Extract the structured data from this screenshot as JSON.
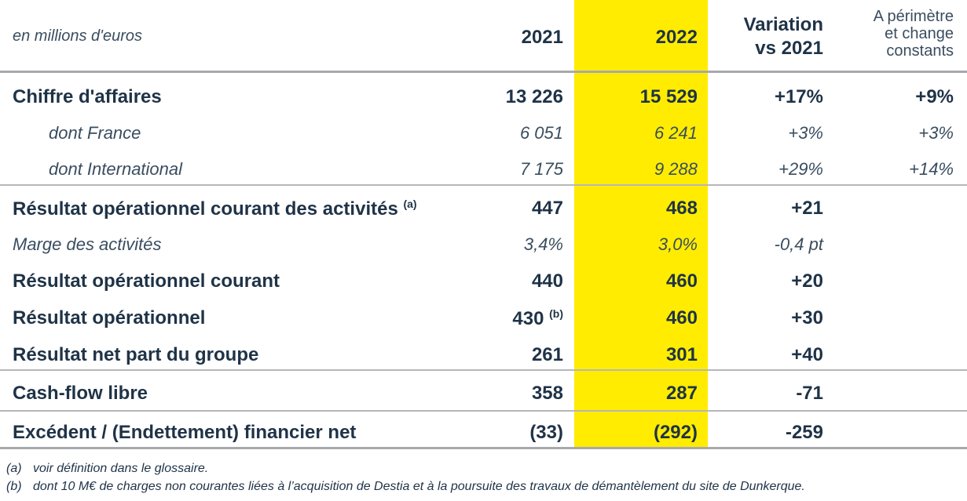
{
  "header": {
    "units": "en millions d'euros",
    "year_2021": "2021",
    "year_2022": "2022",
    "variation_line1": "Variation",
    "variation_line2": "vs 2021",
    "perimeter_line1": "A périmètre",
    "perimeter_line2": "et change",
    "perimeter_line3": "constants"
  },
  "colors": {
    "highlight": "#ffec00",
    "text": "#1f3347",
    "rule": "#a7a9ac"
  },
  "rows": [
    {
      "label": "Chiffre d'affaires",
      "sup": "",
      "v2021": "13 226",
      "v2021_sup": "",
      "v2022": "15 529",
      "variation": "+17%",
      "constant": "+9%"
    },
    {
      "label": "dont France",
      "sup": "",
      "v2021": "6 051",
      "v2021_sup": "",
      "v2022": "6 241",
      "variation": "+3%",
      "constant": "+3%"
    },
    {
      "label": "dont International",
      "sup": "",
      "v2021": "7 175",
      "v2021_sup": "",
      "v2022": "9 288",
      "variation": "+29%",
      "constant": "+14%"
    },
    {
      "label": "Résultat opérationnel courant des activités",
      "sup": "(a)",
      "v2021": "447",
      "v2021_sup": "",
      "v2022": "468",
      "variation": "+21",
      "constant": ""
    },
    {
      "label": "Marge des activités",
      "sup": "",
      "v2021": "3,4%",
      "v2021_sup": "",
      "v2022": "3,0%",
      "variation": "-0,4 pt",
      "constant": ""
    },
    {
      "label": "Résultat opérationnel courant",
      "sup": "",
      "v2021": "440",
      "v2021_sup": "",
      "v2022": "460",
      "variation": "+20",
      "constant": ""
    },
    {
      "label": "Résultat opérationnel",
      "sup": "",
      "v2021": "430",
      "v2021_sup": "(b)",
      "v2022": "460",
      "variation": "+30",
      "constant": ""
    },
    {
      "label": "Résultat net part du groupe",
      "sup": "",
      "v2021": "261",
      "v2021_sup": "",
      "v2022": "301",
      "variation": "+40",
      "constant": ""
    },
    {
      "label": "Cash-flow libre",
      "sup": "",
      "v2021": "358",
      "v2021_sup": "",
      "v2022": "287",
      "variation": "-71",
      "constant": ""
    },
    {
      "label": "Excédent / (Endettement) financier net",
      "sup": "",
      "v2021": "(33)",
      "v2021_sup": "",
      "v2022": "(292)",
      "variation": "-259",
      "constant": ""
    }
  ],
  "footnotes": [
    {
      "tag": "(a)",
      "text": "voir définition dans le glossaire."
    },
    {
      "tag": "(b)",
      "text": "dont 10 M€ de charges non courantes liées à l’acquisition de Destia et à la poursuite des travaux de démantèlement du site de Dunkerque."
    }
  ]
}
